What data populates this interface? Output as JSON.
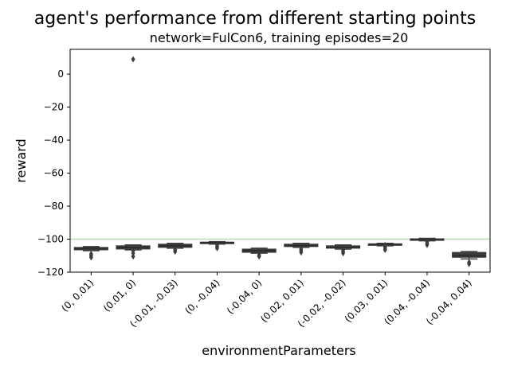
{
  "chart_data": {
    "type": "box",
    "title": "agent's performance from different starting points",
    "subtitle": "network=FulCon6, training episodes=20",
    "xlabel": "environmentParameters",
    "ylabel": "reward",
    "ylim": [
      -120,
      15
    ],
    "yticks": [
      0,
      -20,
      -40,
      -60,
      -80,
      -100,
      -120
    ],
    "reference_line": {
      "y": -100,
      "color": "#b6dbb0"
    },
    "box_color": "#3d3d3d",
    "categories": [
      "(0, 0.01)",
      "(0.01, 0)",
      "(-0.01, -0.03)",
      "(0, -0.04)",
      "(-0.04, 0)",
      "(0.02, 0.01)",
      "(-0.02, -0.02)",
      "(0.03, 0.01)",
      "(0.04, -0.04)",
      "(-0.04, 0.04)"
    ],
    "boxes": [
      {
        "q1": -106.5,
        "median": -105.5,
        "q3": -105,
        "whisker_low": -107,
        "whisker_high": -104.5,
        "outliers": [
          -109,
          -110,
          -111
        ]
      },
      {
        "q1": -106,
        "median": -105,
        "q3": -104,
        "whisker_low": -106.5,
        "whisker_high": -103.5,
        "outliers": [
          -107,
          -108.5,
          -110.5,
          9
        ]
      },
      {
        "q1": -105,
        "median": -104,
        "q3": -103,
        "whisker_low": -105.5,
        "whisker_high": -102.5,
        "outliers": [
          -106.5,
          -107.5
        ]
      },
      {
        "q1": -102.5,
        "median": -102,
        "q3": -101.8,
        "whisker_low": -103,
        "whisker_high": -101.5,
        "outliers": [
          -103.5,
          -104.5,
          -105.5
        ]
      },
      {
        "q1": -108,
        "median": -107,
        "q3": -106,
        "whisker_low": -108.5,
        "whisker_high": -105.5,
        "outliers": [
          -109.5,
          -110.5
        ]
      },
      {
        "q1": -104.5,
        "median": -104,
        "q3": -103,
        "whisker_low": -105,
        "whisker_high": -102.5,
        "outliers": [
          -106,
          -107,
          -108
        ]
      },
      {
        "q1": -105.5,
        "median": -105,
        "q3": -104,
        "whisker_low": -106,
        "whisker_high": -103.5,
        "outliers": [
          -106.5,
          -107.5,
          -108.5
        ]
      },
      {
        "q1": -103.5,
        "median": -103,
        "q3": -102.8,
        "whisker_low": -104,
        "whisker_high": -102.5,
        "outliers": [
          -103.5,
          -104.5,
          -105.5,
          -106.5
        ]
      },
      {
        "q1": -100.5,
        "median": -100,
        "q3": -99.8,
        "whisker_low": -101,
        "whisker_high": -99.5,
        "outliers": [
          -101.5,
          -102.5,
          -103.5
        ]
      },
      {
        "q1": -111,
        "median": -110,
        "q3": -108,
        "whisker_low": -112,
        "whisker_high": -107.5,
        "outliers": [
          -114,
          -115
        ]
      }
    ]
  }
}
